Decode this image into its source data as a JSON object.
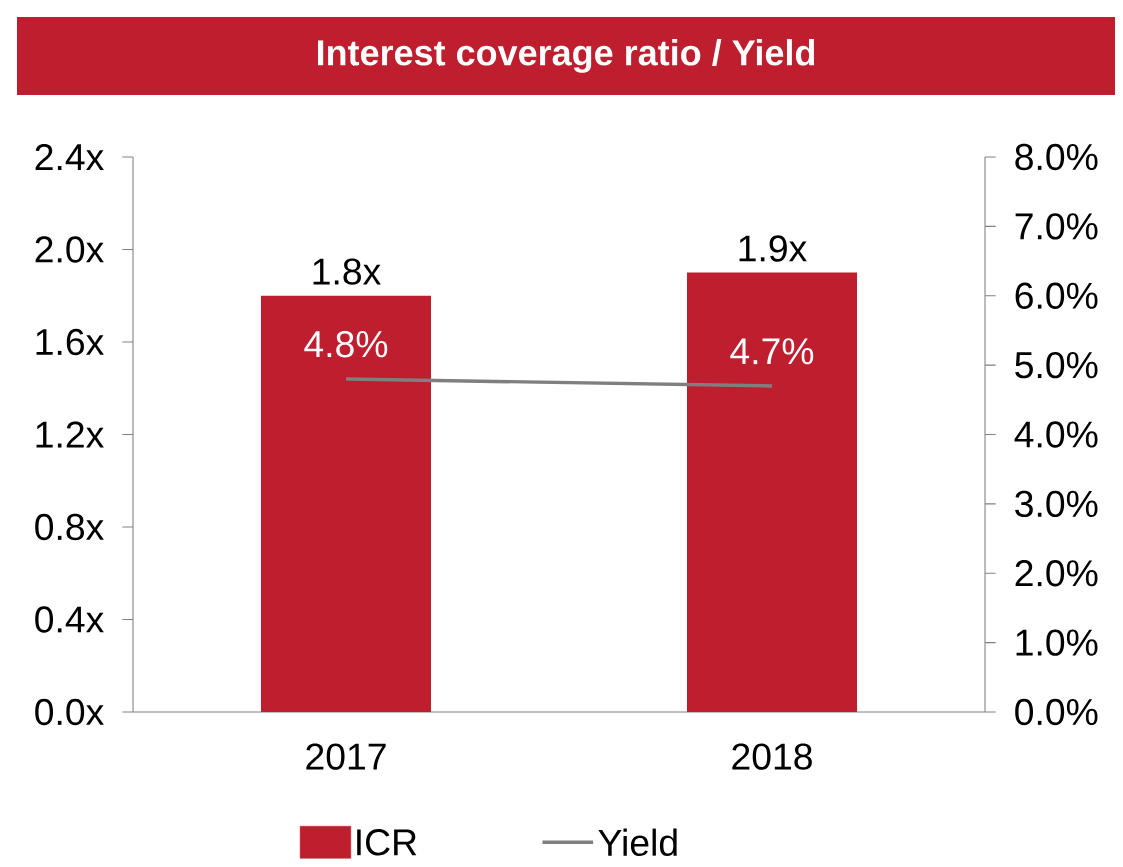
{
  "chart_data": {
    "type": "bar",
    "title": "Interest coverage ratio / Yield",
    "categories": [
      "2017",
      "2018"
    ],
    "series": [
      {
        "name": "ICR",
        "color": "#be1e2d",
        "values": [
          1.8,
          1.9
        ],
        "value_labels": [
          "1.8x",
          "1.9x"
        ]
      },
      {
        "name": "Yield",
        "type": "line",
        "axis": "y2",
        "color": "#7f7f7f",
        "values": [
          4.8,
          4.7
        ],
        "value_labels": [
          "4.8%",
          "4.7%"
        ]
      }
    ],
    "ylim": [
      0,
      2.4
    ],
    "yticks": [
      {
        "value": 0,
        "label": "0.0x"
      },
      {
        "value": 0.4,
        "label": "0.4x"
      },
      {
        "value": 0.8,
        "label": "0.8x"
      },
      {
        "value": 1.2,
        "label": "1.2x"
      },
      {
        "value": 1.6,
        "label": "1.6x"
      },
      {
        "value": 2.0,
        "label": "2.0x"
      },
      {
        "value": 2.4,
        "label": "2.4x"
      }
    ],
    "y2lim": [
      0,
      8
    ],
    "y2ticks": [
      {
        "value": 0,
        "label": "0.0%"
      },
      {
        "value": 1,
        "label": "1.0%"
      },
      {
        "value": 2,
        "label": "2.0%"
      },
      {
        "value": 3,
        "label": "3.0%"
      },
      {
        "value": 4,
        "label": "4.0%"
      },
      {
        "value": 5,
        "label": "5.0%"
      },
      {
        "value": 6,
        "label": "6.0%"
      },
      {
        "value": 7,
        "label": "7.0%"
      },
      {
        "value": 8,
        "label": "8.0%"
      }
    ],
    "legend": "bottom"
  }
}
